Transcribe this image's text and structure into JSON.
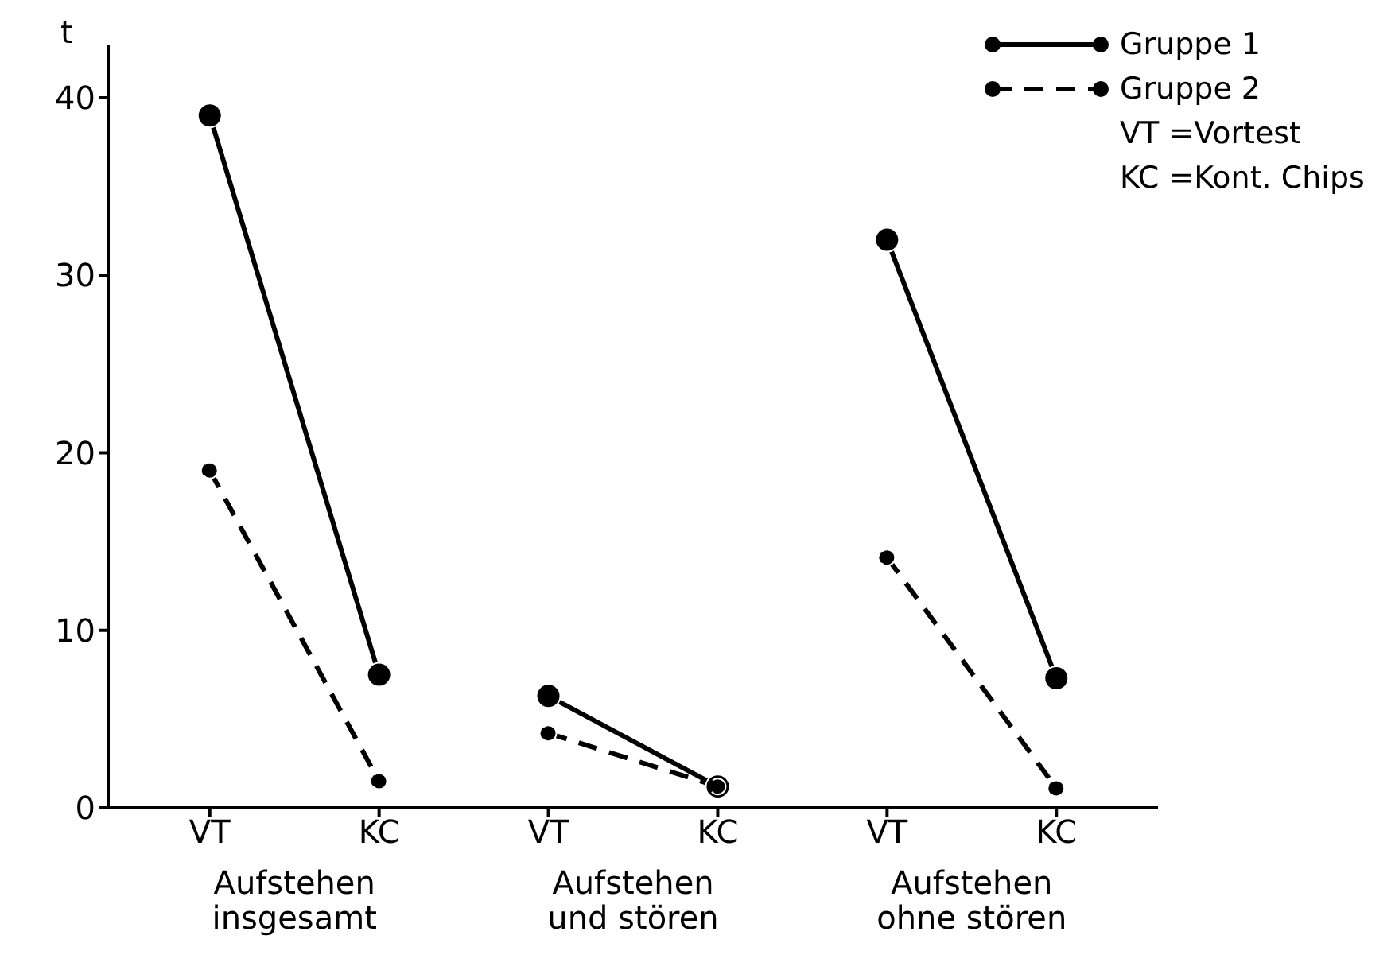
{
  "chart_data": {
    "type": "line",
    "ylabel": "t",
    "categories": [
      "VT",
      "KC",
      "VT",
      "KC",
      "VT",
      "KC"
    ],
    "series": [
      {
        "name": "Gruppe 1",
        "color": "#000000",
        "line_style": "solid",
        "values": [
          39,
          7.5,
          6.3,
          1.2,
          32,
          7.3
        ]
      },
      {
        "name": "Gruppe 2",
        "color": "#000000",
        "line_style": "dashed",
        "values": [
          19,
          1.5,
          4.2,
          1.2,
          14.1,
          1.1
        ]
      }
    ],
    "ylim": [
      0,
      43
    ],
    "yticks": [
      0,
      10,
      20,
      30,
      40
    ],
    "marker": "circle",
    "grid": false,
    "legend": "top right",
    "annotations": [
      "Aufstehen insgesamt",
      "Aufstehen und stören",
      "Aufstehen ohne stören",
      "VT =Vortest",
      "KC =Kont. Chips"
    ]
  }
}
